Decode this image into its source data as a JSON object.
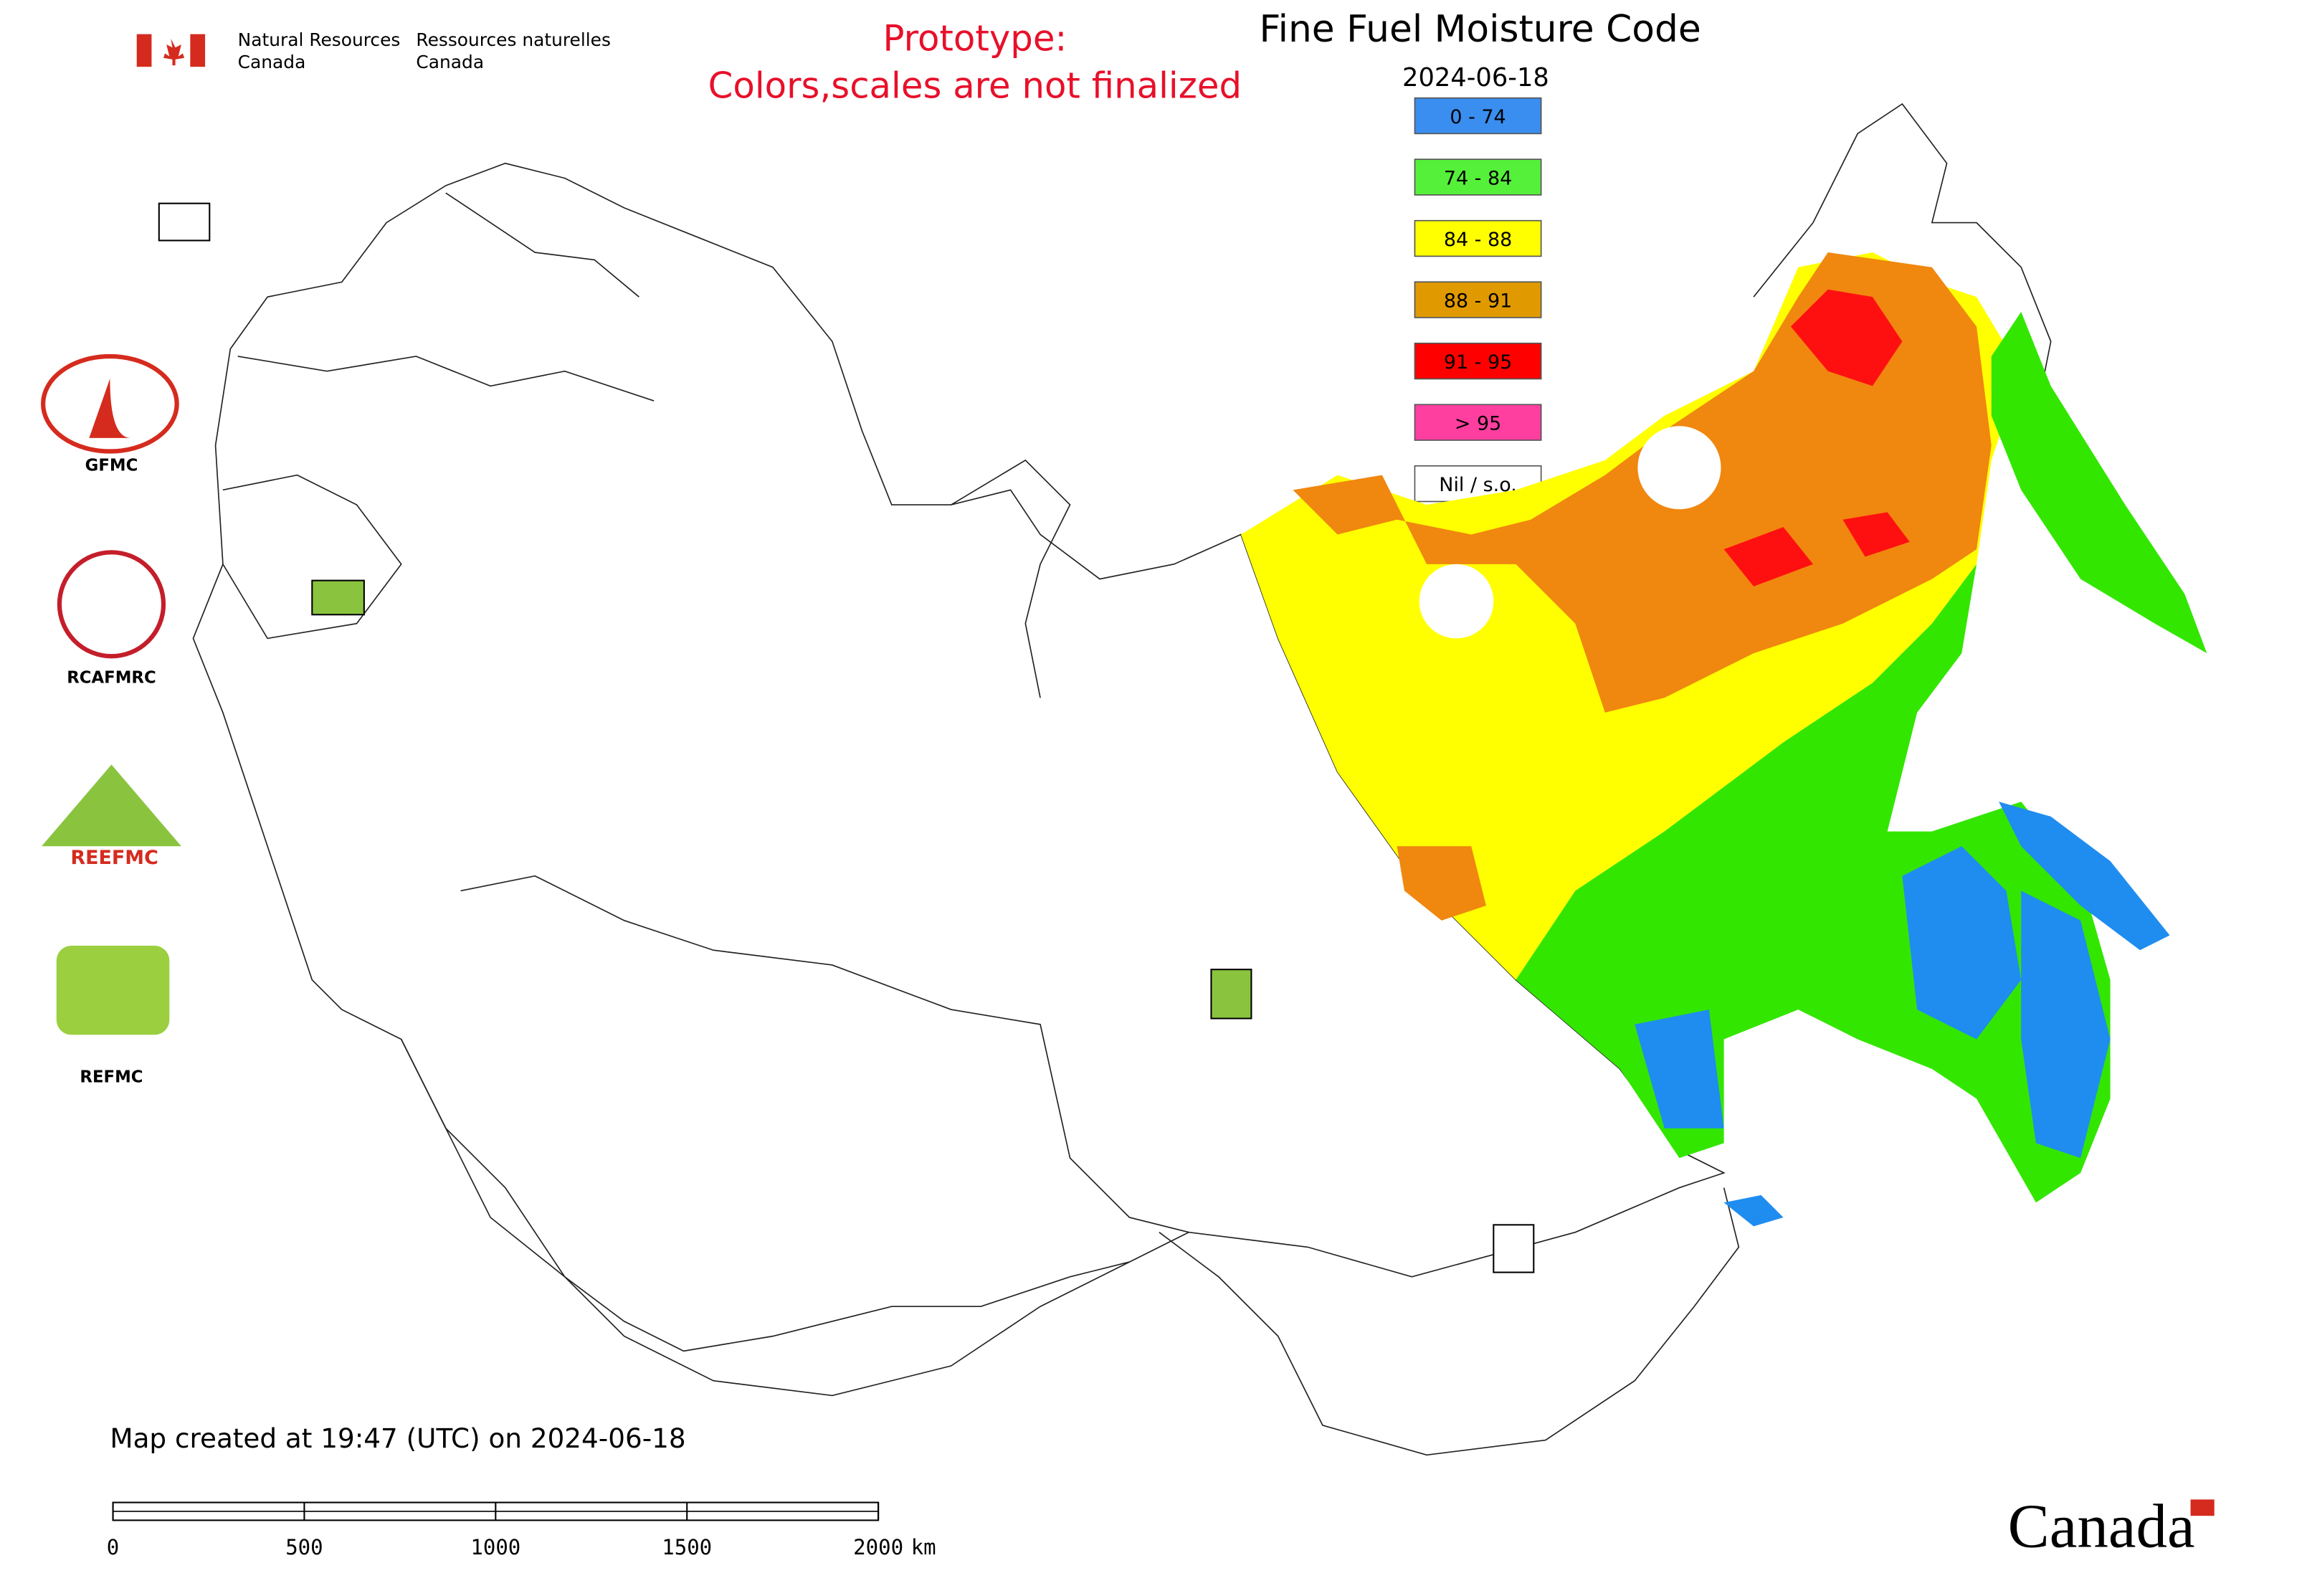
{
  "header": {
    "org_en_1": "Natural Resources",
    "org_en_2": "Canada",
    "org_fr_1": "Ressources naturelles",
    "org_fr_2": "Canada"
  },
  "notice": {
    "line1": "Prototype:",
    "line2": "Colors,scales are not finalized"
  },
  "title": "Fine Fuel Moisture Code",
  "date": "2024-06-18",
  "legend": [
    {
      "label": "0 - 74",
      "color": "#3a8ef0"
    },
    {
      "label": "74 - 84",
      "color": "#55f03a"
    },
    {
      "label": "84 - 88",
      "color": "#ffff00"
    },
    {
      "label": "88 - 91",
      "color": "#e09a00"
    },
    {
      "label": "91 - 95",
      "color": "#ff0000"
    },
    {
      "label": "> 95",
      "color": "#ff3fa0"
    },
    {
      "label": "Nil / s.o.",
      "color": "#ffffff"
    }
  ],
  "logos": [
    "GFMC",
    "RCAFMRC",
    "REEFMC",
    "REFMC"
  ],
  "footer": "Map created at 19:47 (UTC) on 2024-06-18",
  "scale_bar": {
    "ticks": [
      0,
      500,
      1000,
      1500,
      2000
    ],
    "unit": "km"
  },
  "wordmark": "Canada"
}
